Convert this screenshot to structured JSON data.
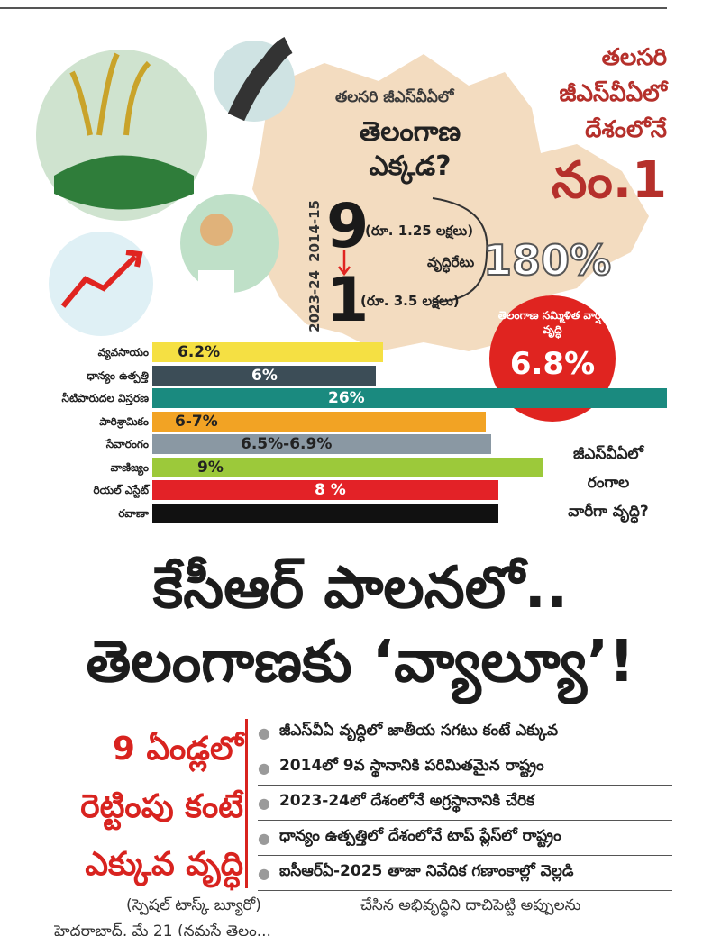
{
  "header": {
    "intro_small": "తలసరి జీఎస్‌వీఏలో",
    "intro_big_1": "తెలంగాణ",
    "intro_big_2": "ఎక్కడ?",
    "rank_line1": "తలసరి",
    "rank_line2": "జీఎస్‌వీఏలో",
    "rank_line3": "దేశంలోనే",
    "rank_no": "నం.1"
  },
  "rank_compare": {
    "year_top": "2014-15",
    "year_bottom": "2023-24",
    "rank_top": "9",
    "rank_top_value": "(రూ. 1.25 లక్షలు)",
    "rank_bottom": "1",
    "rank_bottom_value": "(రూ. 3.5 లక్షలు)",
    "growth_label": "వృద్ధిరేటు",
    "growth_value": "180%"
  },
  "compound_growth": {
    "label": "తెలంగాణ సమ్మిళిత వార్షిక వృద్ధి",
    "value": "6.8%"
  },
  "side_question": {
    "line1": "జీఎస్‌వీఏలో",
    "line2": "రంగాల",
    "line3": "వారీగా వృద్ధి?"
  },
  "chart_data": {
    "type": "bar",
    "categories": [
      "వ్యవసాయం",
      "ధాన్యం ఉత్పత్తి",
      "నీటిపారుదల విస్తరణ",
      "పారిశ్రామికం",
      "సేవారంగం",
      "వాణిజ్యం",
      "రియల్ ఎస్టేట్",
      "రవాణా"
    ],
    "value_labels": [
      "6.2%",
      "6%",
      "26%",
      "6-7%",
      "6.5%-6.9%",
      "9%",
      "8 %",
      ""
    ],
    "colors": [
      "#f5e043",
      "#3c4d57",
      "#1a8a7f",
      "#f2a324",
      "#8a98a3",
      "#9cc93a",
      "#e32227",
      "#111111"
    ],
    "label_colors": [
      "#222222",
      "#ffffff",
      "#ffffff",
      "#222222",
      "#222222",
      "#222222",
      "#ffffff",
      "#ffffff"
    ]
  },
  "headline": {
    "line1": "కేసీఆర్ పాలనలో..",
    "line2": "తెలంగాణకు ‘వ్యాల్యూ’!"
  },
  "left_red": {
    "line1": "9 ఏండ్లలో",
    "line2": "రెట్టింపు కంటే",
    "line3": "ఎక్కువ వృద్ధి"
  },
  "bullets": [
    "జీఎస్‌వీఏ వృద్ధిలో జాతీయ సగటు కంటే ఎక్కువ",
    "2014లో 9వ స్థానానికి పరిమితమైన రాష్ట్రం",
    "2023-24లో దేశంలోనే అగ్రస్థానానికి చేరిక",
    "ధాన్యం ఉత్పత్తిలో దేశంలోనే టాప్ ప్లేస్‌లో రాష్ట్రం",
    "ఐసీఆర్ఏ-2025 తాజా నివేదిక గణాంకాల్లో వెల్లడి"
  ],
  "footer": {
    "byline": "(స్పెషల్ టాస్క్ బ్యూరో)",
    "body": "చేసిన అభివృద్ధిని దాచిపెట్టి అప్పులను",
    "cut_text": "హైదరాబాద్, మే 21 (నమస్తే తెలం..."
  }
}
